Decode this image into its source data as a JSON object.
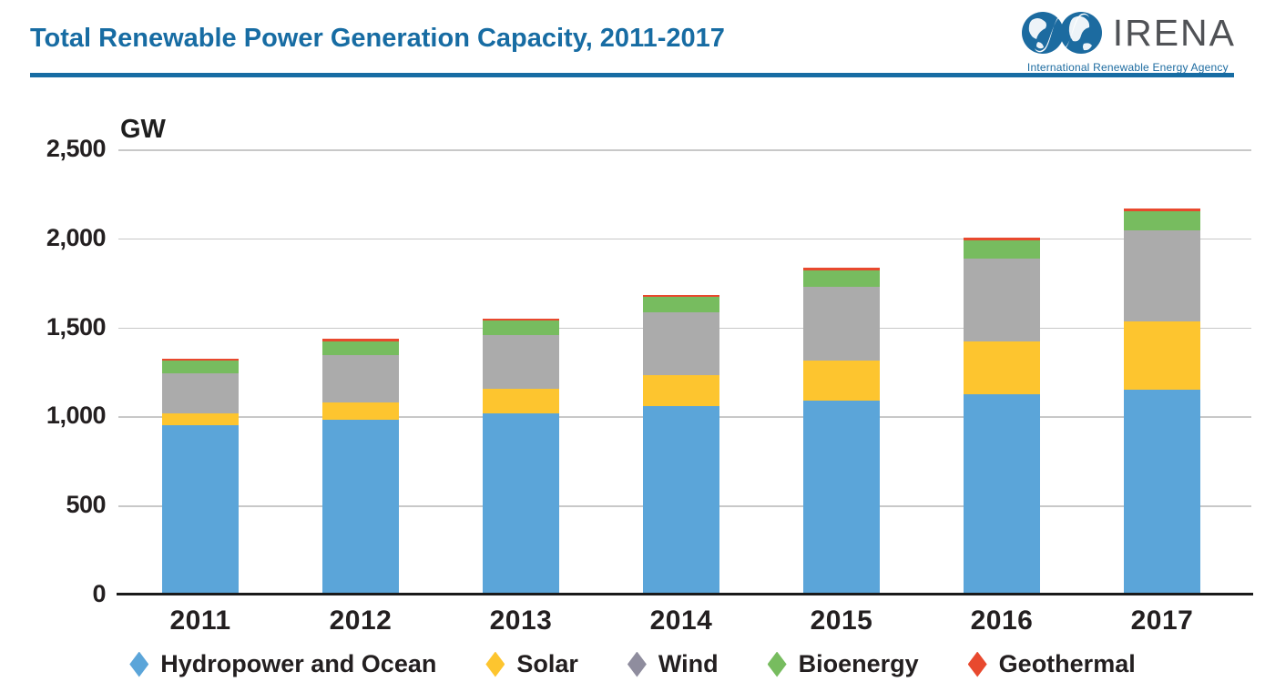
{
  "header": {
    "title": "Total Renewable Power Generation Capacity, 2011-2017",
    "title_color": "#176CA3"
  },
  "logo": {
    "name": "IRENA",
    "tagline": "International Renewable Energy Agency",
    "brand_blue": "#1C6BA0",
    "name_gray": "#505256"
  },
  "colors": {
    "accent_blue": "#176CA3",
    "text_dark": "#231F20",
    "gridline": "#C8C8C8",
    "axis": "#1A1A1A"
  },
  "chart_data": {
    "type": "bar",
    "stacked": true,
    "unit_label": "GW",
    "categories": [
      "2011",
      "2012",
      "2013",
      "2014",
      "2015",
      "2016",
      "2017"
    ],
    "series": [
      {
        "name": "Hydropower and Ocean",
        "color": "#5BA5D9",
        "values": [
          950,
          980,
          1018,
          1060,
          1090,
          1125,
          1150
        ]
      },
      {
        "name": "Solar",
        "color": "#FDC52F",
        "values": [
          70,
          100,
          137,
          173,
          222,
          297,
          385
        ]
      },
      {
        "name": "Wind",
        "color": "#ABABAB",
        "marker_color": "#8F8D9E",
        "values": [
          220,
          267,
          300,
          350,
          415,
          465,
          512
        ]
      },
      {
        "name": "Bioenergy",
        "color": "#77BC5F",
        "values": [
          72,
          77,
          83,
          87,
          94,
          103,
          108
        ]
      },
      {
        "name": "Geothermal",
        "color": "#E8492E",
        "values": [
          10,
          11,
          12,
          12,
          13,
          13,
          13
        ]
      }
    ],
    "totals": [
      1322,
      1435,
      1550,
      1682,
      1834,
      2003,
      2168
    ],
    "ylim": [
      0,
      2500
    ],
    "yticks": [
      0,
      500,
      1000,
      1500,
      2000,
      2500
    ],
    "ytick_labels": [
      "0",
      "500",
      "1,000",
      "1,500",
      "2,000",
      "2,500"
    ],
    "grid": true,
    "legend_position": "bottom"
  }
}
